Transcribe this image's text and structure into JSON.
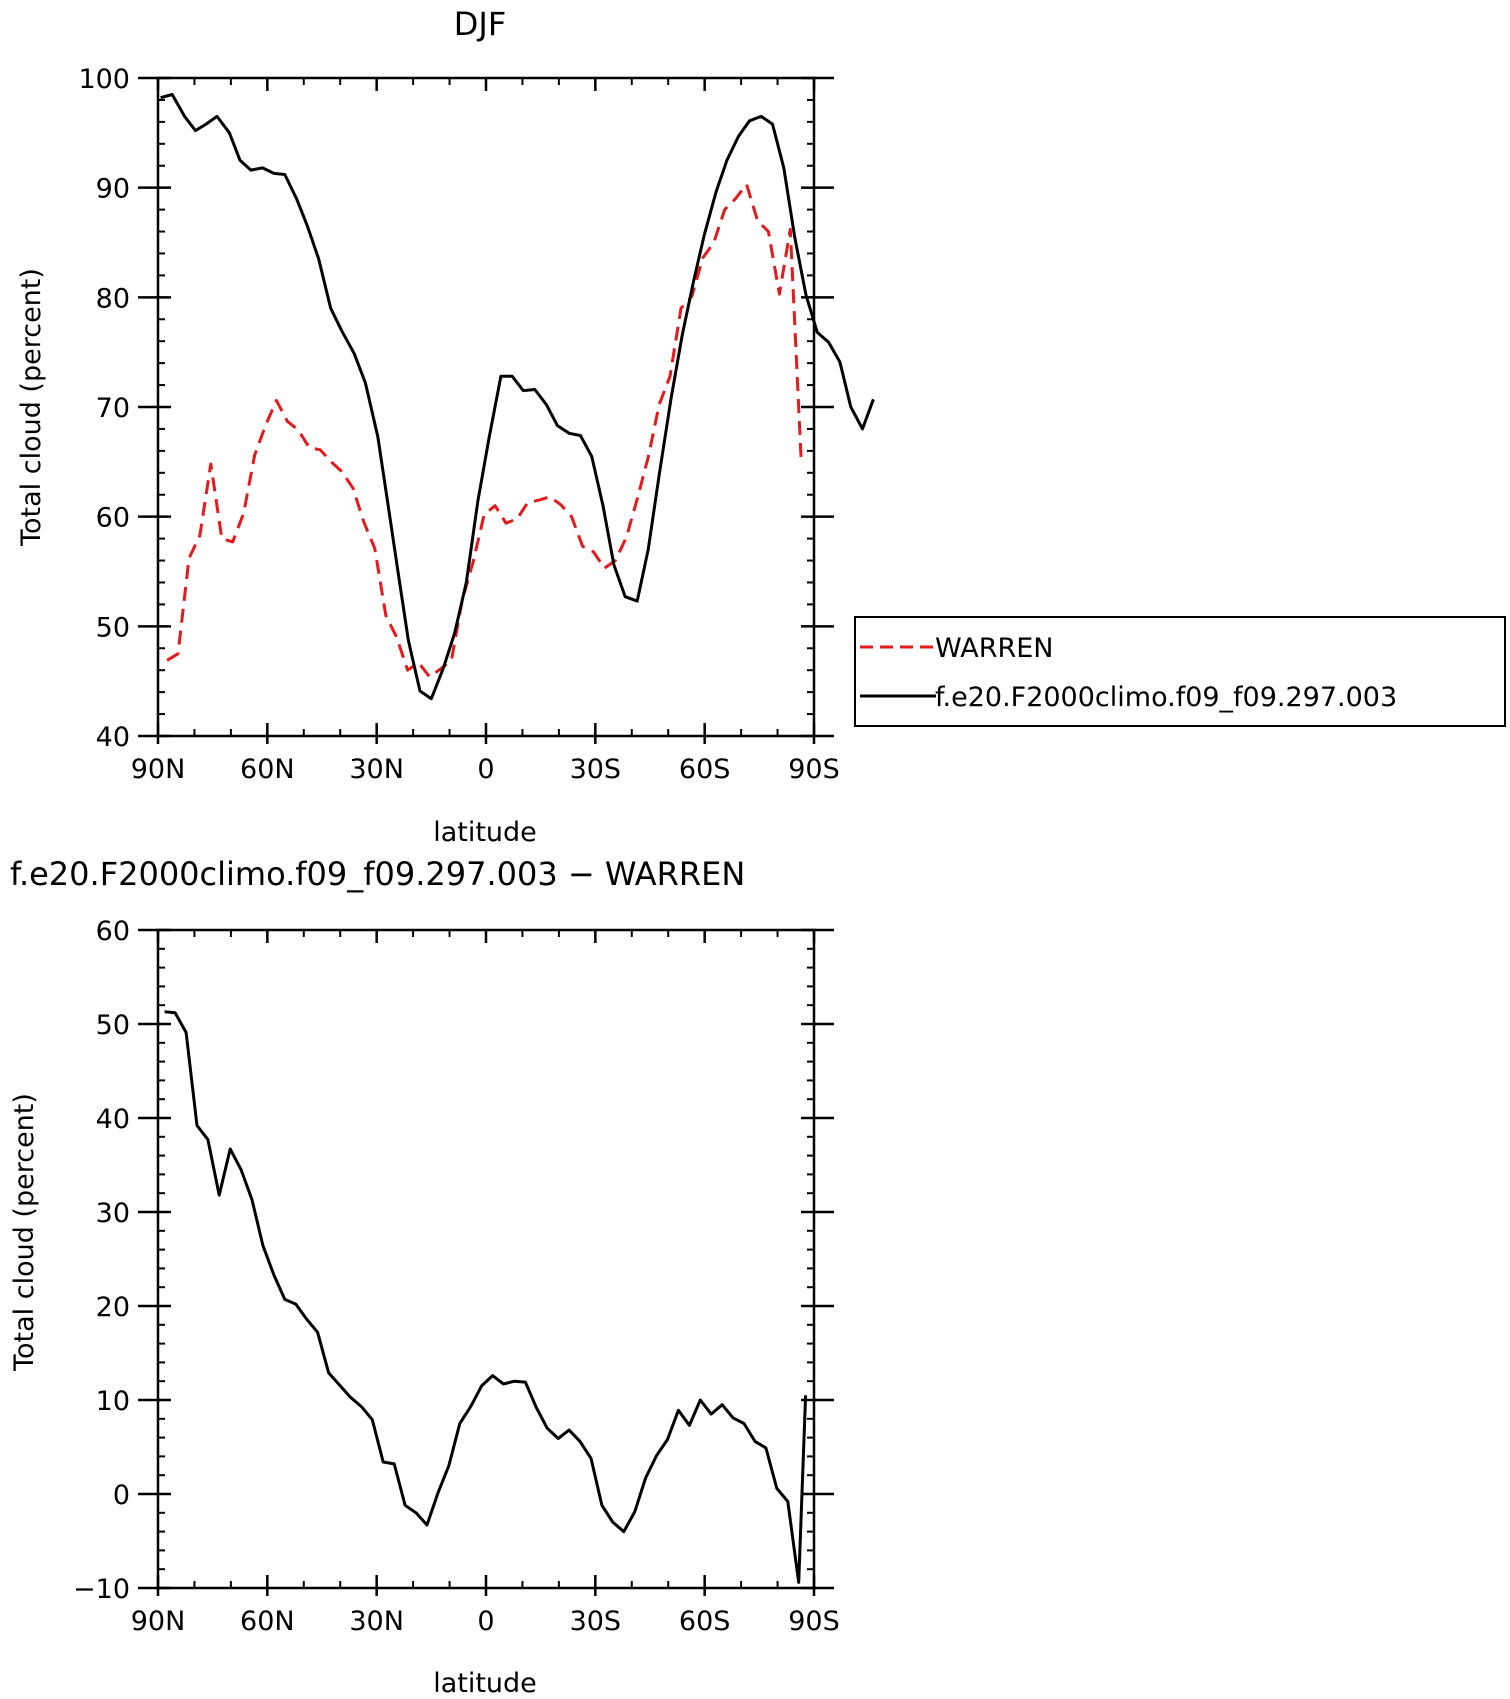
{
  "chart_data": [
    {
      "type": "line",
      "title": "DJF",
      "xlabel": "latitude",
      "ylabel": "Total cloud (percent)",
      "xlim": [
        90,
        -90
      ],
      "ylim": [
        40,
        100
      ],
      "xticks": [
        90,
        60,
        30,
        0,
        -30,
        -60,
        -90
      ],
      "xtick_labels": [
        "90N",
        "60N",
        "30N",
        "0",
        "30S",
        "60S",
        "90S"
      ],
      "yticks": [
        40,
        50,
        60,
        70,
        80,
        90,
        100
      ],
      "ytick_labels": [
        "40",
        "50",
        "60",
        "70",
        "80",
        "90",
        "100"
      ],
      "grid": false,
      "legend_position": "right",
      "series": [
        {
          "name": "WARREN",
          "color": "#e41a1c",
          "dash": "dashed",
          "points": [
            [
              87.5,
              46.9
            ],
            [
              84.5,
              47.5
            ],
            [
              81.5,
              56.2
            ],
            [
              78.5,
              58.3
            ],
            [
              75.5,
              64.8
            ],
            [
              72.5,
              58.0
            ],
            [
              69.5,
              57.7
            ],
            [
              66.5,
              60.3
            ],
            [
              63.5,
              65.6
            ],
            [
              60.5,
              68.3
            ],
            [
              57.5,
              70.6
            ],
            [
              54.5,
              68.7
            ],
            [
              51.5,
              67.9
            ],
            [
              48.5,
              66.3
            ],
            [
              45.5,
              66.1
            ],
            [
              42.5,
              65.0
            ],
            [
              39.5,
              64.1
            ],
            [
              36.5,
              62.6
            ],
            [
              33.5,
              59.5
            ],
            [
              30.5,
              57.1
            ],
            [
              27.5,
              51.0
            ],
            [
              24.5,
              49.0
            ],
            [
              21.5,
              46.0
            ],
            [
              18.5,
              46.7
            ],
            [
              15.5,
              45.4
            ],
            [
              12.5,
              46.1
            ],
            [
              9.5,
              46.9
            ],
            [
              6.5,
              52.4
            ],
            [
              3.5,
              55.9
            ],
            [
              0.5,
              60.2
            ],
            [
              -2.5,
              61.0
            ],
            [
              -5.5,
              59.4
            ],
            [
              -8.5,
              59.8
            ],
            [
              -11.5,
              61.3
            ],
            [
              -14.5,
              61.5
            ],
            [
              -17.5,
              61.8
            ],
            [
              -20.5,
              61.1
            ],
            [
              -23.5,
              60.0
            ],
            [
              -26.5,
              57.3
            ],
            [
              -29.5,
              56.8
            ],
            [
              -32.5,
              55.3
            ],
            [
              -35.5,
              56.0
            ],
            [
              -38.5,
              58.1
            ],
            [
              -41.5,
              61.6
            ],
            [
              -44.5,
              65.4
            ],
            [
              -47.5,
              70.2
            ],
            [
              -50.5,
              72.8
            ],
            [
              -53.5,
              79.0
            ],
            [
              -56.5,
              80.1
            ],
            [
              -59.5,
              83.6
            ],
            [
              -62.5,
              85.0
            ],
            [
              -65.5,
              88.0
            ],
            [
              -68.5,
              89.0
            ],
            [
              -71.5,
              90.3
            ],
            [
              -74.5,
              87.0
            ],
            [
              -77.5,
              86.0
            ],
            [
              -80.5,
              80.3
            ],
            [
              -83.5,
              86.2
            ],
            [
              -86.5,
              65.1
            ]
          ]
        },
        {
          "name": "f.e20.F2000climo.f09_f09.297.003",
          "color": "#000000",
          "dash": "solid",
          "points": [
            [
              89.3,
              98.2
            ],
            [
              86.1,
              98.5
            ],
            [
              82.7,
              96.5
            ],
            [
              79.7,
              95.2
            ],
            [
              76.8,
              95.8
            ],
            [
              73.8,
              96.5
            ],
            [
              70.4,
              95.0
            ],
            [
              67.5,
              92.5
            ],
            [
              64.5,
              91.6
            ],
            [
              61.3,
              91.8
            ],
            [
              58.2,
              91.3
            ],
            [
              55.2,
              91.2
            ],
            [
              52.0,
              89.0
            ],
            [
              49.0,
              86.5
            ],
            [
              45.9,
              83.5
            ],
            [
              42.6,
              79.0
            ],
            [
              39.5,
              76.9
            ],
            [
              36.2,
              74.9
            ],
            [
              33.1,
              72.2
            ],
            [
              29.7,
              67.3
            ],
            [
              27.1,
              61.6
            ],
            [
              24.2,
              55.1
            ],
            [
              21.3,
              48.7
            ],
            [
              18.1,
              44.1
            ],
            [
              15.0,
              43.4
            ],
            [
              11.7,
              46.2
            ],
            [
              8.6,
              49.4
            ],
            [
              5.4,
              54.0
            ],
            [
              2.2,
              61.5
            ],
            [
              -0.9,
              67.3
            ],
            [
              -4.1,
              72.8
            ],
            [
              -7.2,
              72.8
            ],
            [
              -10.2,
              71.5
            ],
            [
              -13.4,
              71.6
            ],
            [
              -16.6,
              70.2
            ],
            [
              -19.6,
              68.3
            ],
            [
              -22.8,
              67.6
            ],
            [
              -25.9,
              67.4
            ],
            [
              -29.0,
              65.5
            ],
            [
              -32.1,
              61.0
            ],
            [
              -35.1,
              55.6
            ],
            [
              -38.2,
              52.7
            ],
            [
              -41.5,
              52.3
            ],
            [
              -44.5,
              57.0
            ],
            [
              -47.6,
              64.0
            ],
            [
              -50.8,
              70.8
            ],
            [
              -53.8,
              76.5
            ],
            [
              -56.9,
              81.4
            ],
            [
              -59.9,
              85.7
            ],
            [
              -63.1,
              89.6
            ],
            [
              -66.1,
              92.5
            ],
            [
              -69.3,
              94.7
            ],
            [
              -72.3,
              96.1
            ],
            [
              -75.5,
              96.5
            ],
            [
              -78.6,
              95.8
            ],
            [
              -81.7,
              91.8
            ],
            [
              -84.7,
              85.5
            ],
            [
              -87.8,
              80.2
            ],
            [
              -90.9,
              76.8
            ],
            [
              -94.0,
              75.9
            ],
            [
              -97.1,
              74.1
            ],
            [
              -100.1,
              70.0
            ],
            [
              -103.3,
              68.0
            ],
            [
              -106.3,
              70.7
            ]
          ]
        }
      ]
    },
    {
      "type": "line",
      "title": "f.e20.F2000climo.f09_f09.297.003 − WARREN",
      "xlabel": "latitude",
      "ylabel": "Total cloud (percent)",
      "xlim": [
        90,
        -90
      ],
      "ylim": [
        -10,
        60
      ],
      "xticks": [
        90,
        60,
        30,
        0,
        -30,
        -60,
        -90
      ],
      "xtick_labels": [
        "90N",
        "60N",
        "30N",
        "0",
        "30S",
        "60S",
        "90S"
      ],
      "yticks": [
        -10,
        0,
        10,
        20,
        30,
        40,
        50,
        60
      ],
      "ytick_labels": [
        "−10",
        "0",
        "10",
        "20",
        "30",
        "40",
        "50",
        "60"
      ],
      "grid": false,
      "series": [
        {
          "color": "#000000",
          "dash": "solid",
          "points": [
            [
              88.2,
              51.3
            ],
            [
              85.3,
              51.2
            ],
            [
              82.3,
              49.1
            ],
            [
              79.3,
              39.2
            ],
            [
              76.3,
              37.7
            ],
            [
              73.2,
              31.8
            ],
            [
              70.2,
              36.7
            ],
            [
              67.2,
              34.5
            ],
            [
              64.2,
              31.3
            ],
            [
              61.2,
              26.4
            ],
            [
              58.2,
              23.3
            ],
            [
              55.2,
              20.7
            ],
            [
              52.2,
              20.2
            ],
            [
              49.2,
              18.6
            ],
            [
              46.2,
              17.2
            ],
            [
              43.2,
              12.9
            ],
            [
              40.2,
              11.6
            ],
            [
              37.2,
              10.3
            ],
            [
              34.2,
              9.3
            ],
            [
              31.2,
              7.9
            ],
            [
              28.2,
              3.4
            ],
            [
              25.2,
              3.2
            ],
            [
              22.2,
              -1.2
            ],
            [
              19.2,
              -2.0
            ],
            [
              16.2,
              -3.3
            ],
            [
              13.2,
              0.1
            ],
            [
              10.2,
              3.0
            ],
            [
              7.2,
              7.5
            ],
            [
              4.2,
              9.3
            ],
            [
              1.2,
              11.5
            ],
            [
              -1.8,
              12.6
            ],
            [
              -4.8,
              11.7
            ],
            [
              -7.8,
              12.0
            ],
            [
              -10.8,
              11.9
            ],
            [
              -13.8,
              9.2
            ],
            [
              -16.8,
              7.0
            ],
            [
              -19.8,
              5.9
            ],
            [
              -22.8,
              6.8
            ],
            [
              -25.8,
              5.6
            ],
            [
              -28.8,
              3.8
            ],
            [
              -31.8,
              -1.2
            ],
            [
              -34.8,
              -3.0
            ],
            [
              -37.8,
              -4.0
            ],
            [
              -40.8,
              -1.9
            ],
            [
              -43.8,
              1.7
            ],
            [
              -46.8,
              4.1
            ],
            [
              -49.8,
              5.8
            ],
            [
              -52.8,
              8.9
            ],
            [
              -55.8,
              7.3
            ],
            [
              -58.8,
              10.0
            ],
            [
              -61.8,
              8.5
            ],
            [
              -64.8,
              9.5
            ],
            [
              -67.8,
              8.1
            ],
            [
              -70.8,
              7.5
            ],
            [
              -73.8,
              5.6
            ],
            [
              -76.8,
              4.9
            ],
            [
              -79.8,
              0.6
            ],
            [
              -82.8,
              -0.8
            ],
            [
              -85.8,
              -9.4
            ],
            [
              -87.7,
              10.5
            ]
          ]
        }
      ]
    }
  ],
  "legend": {
    "items": [
      {
        "label": "WARREN",
        "color": "#e41a1c",
        "dash": "dashed"
      },
      {
        "label": "f.e20.F2000climo.f09_f09.297.003",
        "color": "#000000",
        "dash": "solid"
      }
    ]
  }
}
